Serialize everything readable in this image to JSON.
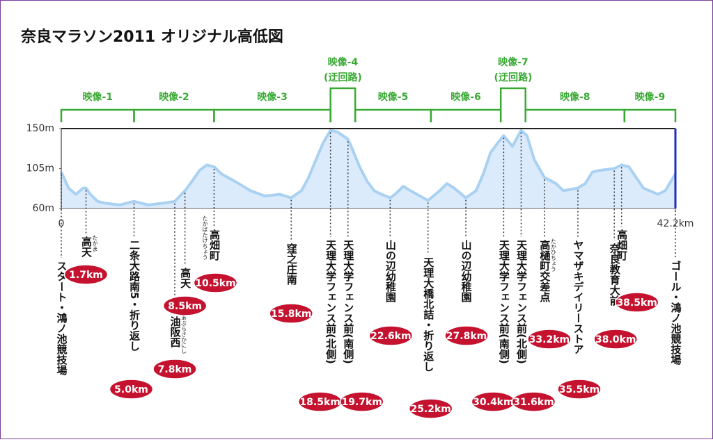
{
  "chart_data": {
    "type": "area",
    "title": "奈良マラソン2011 オリジナル高低図",
    "color": "#a9d1f2",
    "fill": "#dcebfb",
    "x": [
      0,
      0.5,
      1,
      1.5,
      1.7,
      2,
      2.5,
      3,
      4,
      5,
      6,
      7,
      7.8,
      8.5,
      9,
      9.5,
      10,
      10.5,
      11,
      12,
      13,
      14,
      15,
      15.8,
      16.5,
      17,
      17.5,
      18,
      18.5,
      19,
      19.7,
      20,
      20.5,
      21,
      21.5,
      22,
      22.6,
      23,
      23.5,
      24,
      25.2,
      26,
      26.5,
      27,
      27.8,
      28.5,
      29,
      29.5,
      30,
      30.4,
      31,
      31.6,
      32,
      32.5,
      33.2,
      34,
      34.5,
      35.5,
      36,
      36.5,
      37,
      38,
      38.5,
      39,
      40,
      41,
      41.5,
      42.2
    ],
    "values": [
      101,
      83,
      76,
      83,
      83,
      76,
      68,
      66,
      64,
      68,
      64,
      66,
      68,
      80,
      91,
      103,
      109,
      107,
      99,
      90,
      80,
      74,
      76,
      72,
      80,
      95,
      115,
      134,
      148,
      146,
      138,
      127,
      107,
      91,
      80,
      76,
      72,
      77,
      85,
      80,
      69,
      80,
      88,
      83,
      72,
      80,
      99,
      123,
      134,
      142,
      130,
      148,
      142,
      115,
      95,
      88,
      80,
      83,
      88,
      101,
      103,
      105,
      109,
      107,
      83,
      76,
      80,
      99
    ],
    "xlim": [
      0,
      42.2
    ],
    "xticks": [
      0,
      {
        "value": 42.2,
        "label": "42.2km"
      }
    ],
    "ylim": [
      60,
      150
    ],
    "yticks": [
      {
        "value": 60,
        "label": "60m"
      },
      {
        "value": 105,
        "label": "105m"
      },
      {
        "value": 150,
        "label": "150m"
      }
    ],
    "segment_color": "#3aaa35",
    "segments": [
      {
        "name": "映像-1",
        "start": 0,
        "end": 5
      },
      {
        "name": "映像-2",
        "start": 5,
        "end": 10.5
      },
      {
        "name": "映像-3",
        "start": 10.5,
        "end": 18.5
      },
      {
        "name": "映像-4",
        "note": "(迂回路)",
        "start": 18.5,
        "end": 20.2
      },
      {
        "name": "映像-5",
        "start": 20.2,
        "end": 25.4
      },
      {
        "name": "映像-6",
        "start": 25.4,
        "end": 30.2
      },
      {
        "name": "映像-7",
        "note": "(迂回路)",
        "start": 30.2,
        "end": 31.9
      },
      {
        "name": "映像-8",
        "start": 31.9,
        "end": 38.7
      },
      {
        "name": "映像-9",
        "start": 38.7,
        "end": 42.2
      }
    ],
    "start": {
      "name": "スタート・鴻ノ池競技場",
      "km": 0
    },
    "goal": {
      "name": "ゴール・鴻ノ池競技場",
      "km": 42.2
    },
    "landmarks": [
      {
        "name": "高天",
        "ruby": "たかま",
        "km": 1.7,
        "km_label": "1.7km"
      },
      {
        "name": "二条大路南5・折り返し",
        "km": 5.0,
        "km_label": "5.0km"
      },
      {
        "name": "油阪西",
        "ruby": "あぶらさかにし",
        "km": 7.8,
        "km_label": "7.8km"
      },
      {
        "name": "高天",
        "km": 8.5,
        "km_label": "8.5km"
      },
      {
        "name": "高畑町",
        "ruby": "たかばたけちょう",
        "km": 10.5,
        "km_label": "10.5km"
      },
      {
        "name": "窪之庄南",
        "km": 15.8,
        "km_label": "15.8km"
      },
      {
        "name": "天理大学フェンス前(北側)",
        "km": 18.5,
        "km_label": "18.5km"
      },
      {
        "name": "天理大学フェンス前(南側)",
        "km": 19.7,
        "km_label": "19.7km"
      },
      {
        "name": "山の辺幼稚園",
        "km": 22.6,
        "km_label": "22.6km"
      },
      {
        "name": "天理大橋北詰・折り返し",
        "km": 25.2,
        "km_label": "25.2km"
      },
      {
        "name": "山の辺幼稚園",
        "km": 27.8,
        "km_label": "27.8km"
      },
      {
        "name": "天理大学フェンス前(南側)",
        "km": 30.4,
        "km_label": "30.4km"
      },
      {
        "name": "天理大学フェンス前(北側)",
        "km": 31.6,
        "km_label": "31.6km"
      },
      {
        "name": "高樋町交差点",
        "ruby": "たかひちょう",
        "km": 33.2,
        "km_label": "33.2km"
      },
      {
        "name": "ヤマザキデイリーストア",
        "km": 35.5,
        "km_label": "35.5km"
      },
      {
        "name": "奈良教育大前",
        "km": 38.0,
        "km_label": "38.0km"
      },
      {
        "name": "高畑町",
        "km": 38.5,
        "km_label": "38.5km"
      }
    ]
  }
}
